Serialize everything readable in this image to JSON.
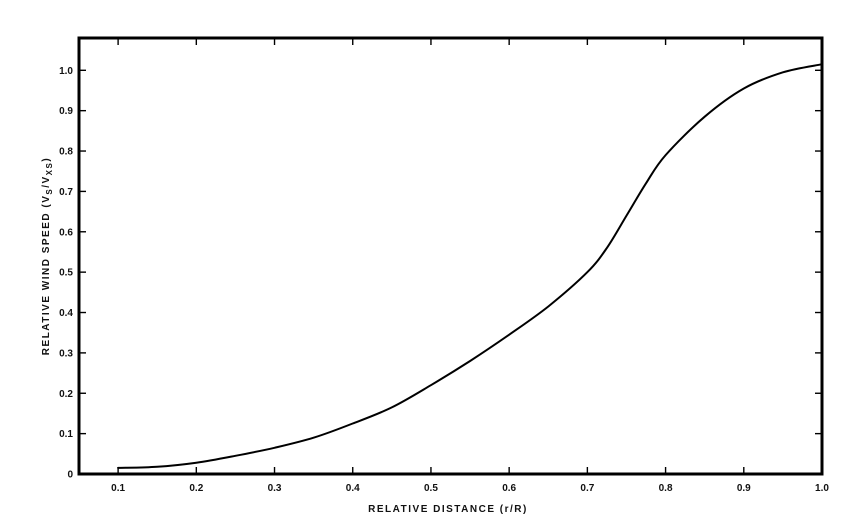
{
  "chart_data": {
    "type": "line",
    "title": "",
    "xlabel": "RELATIVE DISTANCE (r/R)",
    "ylabel": "RELATIVE WIND SPEED (V_S/V_XS)",
    "ylabel_parts": {
      "prefix": "RELATIVE WIND SPEED (V",
      "sub1": "S",
      "mid": "/V",
      "sub2": "XS",
      "suffix": ")"
    },
    "xlim": [
      0.05,
      1.0
    ],
    "ylim": [
      0,
      1.08
    ],
    "x_ticks": [
      0.1,
      0.2,
      0.3,
      0.4,
      0.5,
      0.6,
      0.7,
      0.8,
      0.9,
      1.0
    ],
    "x_tick_labels": [
      "0.1",
      "0.2",
      "0.3",
      "0.4",
      "0.5",
      "0.6",
      "0.7",
      "0.8",
      "0.9",
      "1.0"
    ],
    "y_ticks": [
      0,
      0.1,
      0.2,
      0.3,
      0.4,
      0.5,
      0.6,
      0.7,
      0.8,
      0.9,
      1.0
    ],
    "y_tick_labels": [
      "0",
      "0.1",
      "0.2",
      "0.3",
      "0.4",
      "0.5",
      "0.6",
      "0.7",
      "0.8",
      "0.9",
      "1.0"
    ],
    "grid": false,
    "line_color": "#000000",
    "series": [
      {
        "x": [
          0.1,
          0.15,
          0.2,
          0.25,
          0.3,
          0.35,
          0.4,
          0.45,
          0.5,
          0.55,
          0.6,
          0.65,
          0.7,
          0.725,
          0.75,
          0.775,
          0.8,
          0.85,
          0.9,
          0.95,
          1.0
        ],
        "values": [
          0.015,
          0.018,
          0.028,
          0.045,
          0.065,
          0.09,
          0.125,
          0.165,
          0.22,
          0.28,
          0.345,
          0.415,
          0.5,
          0.56,
          0.64,
          0.72,
          0.79,
          0.885,
          0.955,
          0.995,
          1.015
        ]
      }
    ]
  }
}
